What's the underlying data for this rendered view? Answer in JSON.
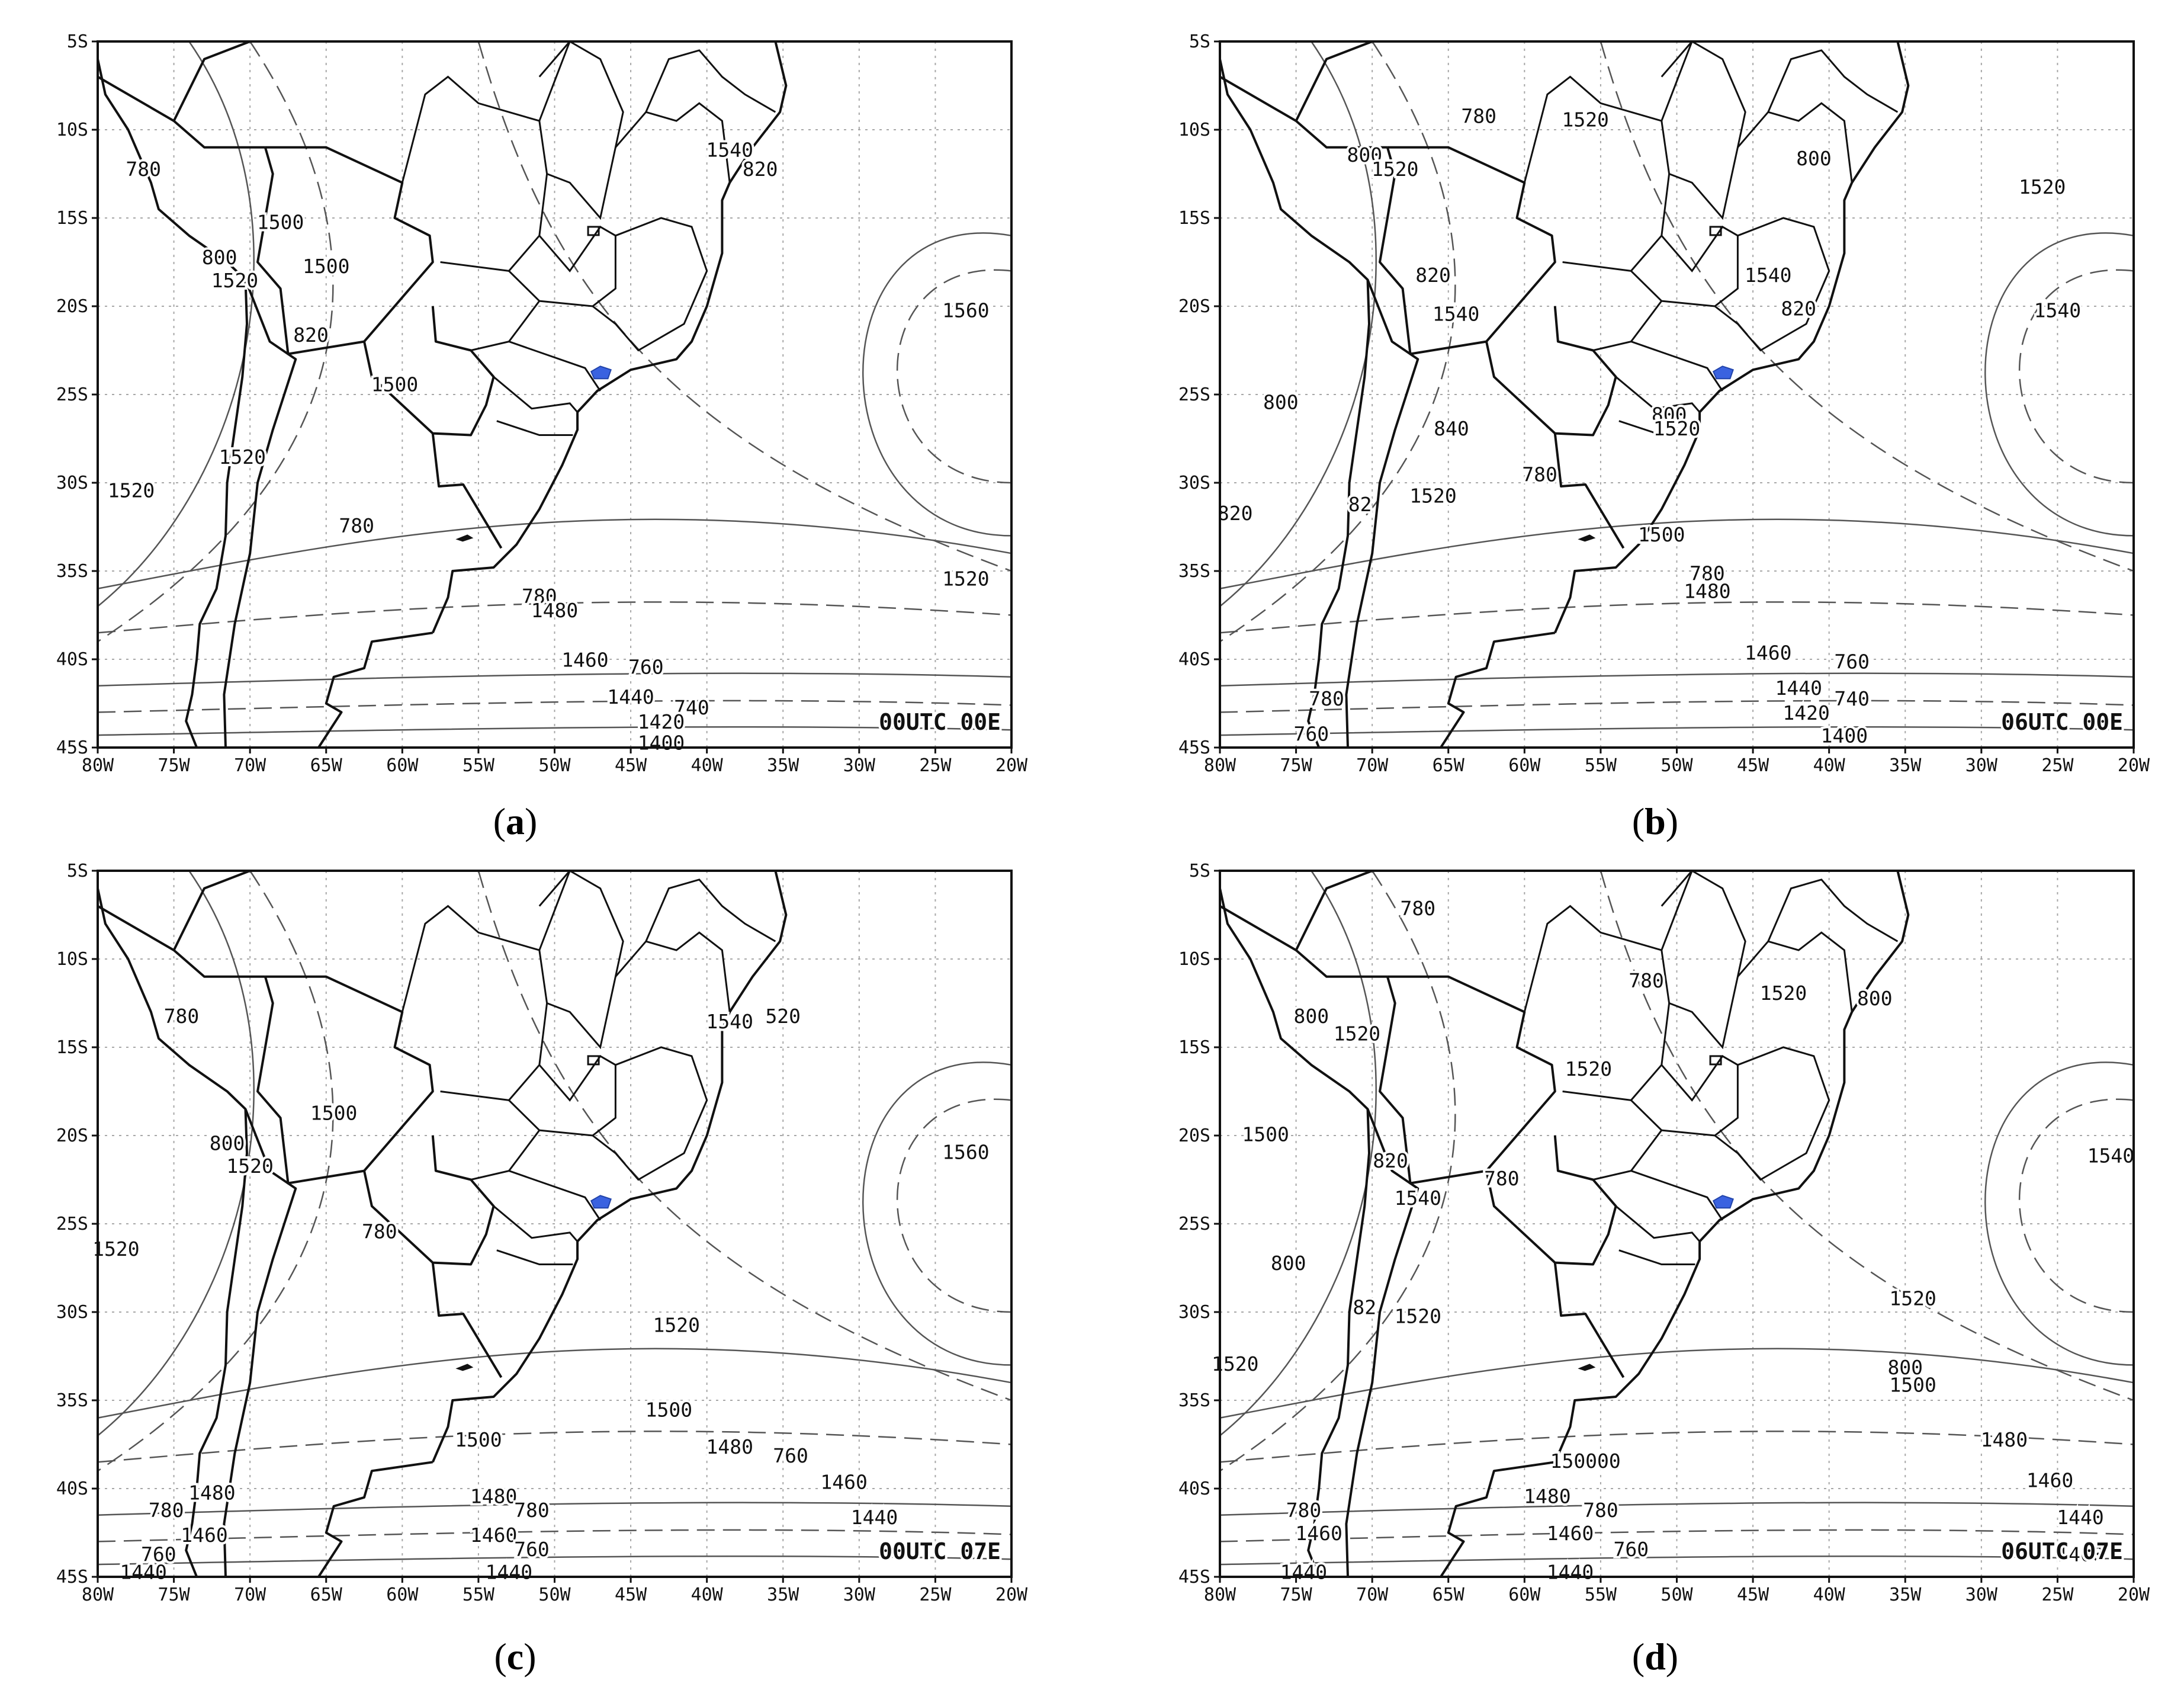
{
  "figure": {
    "panels": [
      {
        "id": "a",
        "caption": "a",
        "stamp": "00UTC 00E",
        "x_ticks": [
          "80W",
          "75W",
          "70W",
          "65W",
          "60W",
          "55W",
          "50W",
          "45W",
          "40W",
          "35W",
          "30W",
          "25W",
          "20W"
        ],
        "y_ticks": [
          "5S",
          "10S",
          "15S",
          "20S",
          "25S",
          "30S",
          "35S",
          "40S",
          "45S"
        ],
        "contour_labels": [
          {
            "text": "780",
            "lon": -77,
            "lat": -12.3
          },
          {
            "text": "1500",
            "lon": -68,
            "lat": -15.3
          },
          {
            "text": "1500",
            "lon": -65,
            "lat": -17.8
          },
          {
            "text": "800",
            "lon": -72,
            "lat": -17.3
          },
          {
            "text": "1520",
            "lon": -71,
            "lat": -18.6
          },
          {
            "text": "820",
            "lon": -66,
            "lat": -21.7
          },
          {
            "text": "1500",
            "lon": -60.5,
            "lat": -24.5
          },
          {
            "text": "1520",
            "lon": -77.8,
            "lat": -30.5
          },
          {
            "text": "1520",
            "lon": -70.5,
            "lat": -28.6
          },
          {
            "text": "780",
            "lon": -63,
            "lat": -32.5
          },
          {
            "text": "1540",
            "lon": -38.5,
            "lat": -11.2
          },
          {
            "text": "820",
            "lon": -36.5,
            "lat": -12.3
          },
          {
            "text": "1560",
            "lon": -23,
            "lat": -20.3
          },
          {
            "text": "1520",
            "lon": -23,
            "lat": -35.5
          },
          {
            "text": "780",
            "lon": -51,
            "lat": -36.5
          },
          {
            "text": "1480",
            "lon": -50,
            "lat": -37.3
          },
          {
            "text": "1460",
            "lon": -48,
            "lat": -40.1
          },
          {
            "text": "760",
            "lon": -44,
            "lat": -40.5
          },
          {
            "text": "1440",
            "lon": -45,
            "lat": -42.2
          },
          {
            "text": "740",
            "lon": -41,
            "lat": -42.8
          },
          {
            "text": "1420",
            "lon": -43,
            "lat": -43.6
          },
          {
            "text": "1400",
            "lon": -43,
            "lat": -44.8
          }
        ]
      },
      {
        "id": "b",
        "caption": "b",
        "stamp": "06UTC 00E",
        "x_ticks": [
          "80W",
          "75W",
          "70W",
          "65W",
          "60W",
          "55W",
          "50W",
          "45W",
          "40W",
          "35W",
          "30W",
          "25W",
          "20W"
        ],
        "y_ticks": [
          "5S",
          "10S",
          "15S",
          "20S",
          "25S",
          "30S",
          "35S",
          "40S",
          "45S"
        ],
        "contour_labels": [
          {
            "text": "780",
            "lon": -63,
            "lat": -9.3
          },
          {
            "text": "1520",
            "lon": -56,
            "lat": -9.5
          },
          {
            "text": "800",
            "lon": -70.5,
            "lat": -11.5
          },
          {
            "text": "1520",
            "lon": -68.5,
            "lat": -12.3
          },
          {
            "text": "800",
            "lon": -41,
            "lat": -11.7
          },
          {
            "text": "1520",
            "lon": -26,
            "lat": -13.3
          },
          {
            "text": "820",
            "lon": -66,
            "lat": -18.3
          },
          {
            "text": "1540",
            "lon": -64.5,
            "lat": -20.5
          },
          {
            "text": "1540",
            "lon": -44,
            "lat": -18.3
          },
          {
            "text": "820",
            "lon": -42,
            "lat": -20.2
          },
          {
            "text": "1540",
            "lon": -25,
            "lat": -20.3
          },
          {
            "text": "800",
            "lon": -76,
            "lat": -25.5
          },
          {
            "text": "840",
            "lon": -64.8,
            "lat": -27
          },
          {
            "text": "800",
            "lon": -50.5,
            "lat": -26.2
          },
          {
            "text": "1520",
            "lon": -50,
            "lat": -27
          },
          {
            "text": "780",
            "lon": -59,
            "lat": -29.6
          },
          {
            "text": "1520",
            "lon": -66,
            "lat": -30.8
          },
          {
            "text": "820",
            "lon": -79,
            "lat": -31.8
          },
          {
            "text": "82",
            "lon": -70.8,
            "lat": -31.3
          },
          {
            "text": "1500",
            "lon": -51,
            "lat": -33
          },
          {
            "text": "780",
            "lon": -48,
            "lat": -35.2
          },
          {
            "text": "1480",
            "lon": -48,
            "lat": -36.2
          },
          {
            "text": "1460",
            "lon": -44,
            "lat": -39.7
          },
          {
            "text": "760",
            "lon": -38.5,
            "lat": -40.2
          },
          {
            "text": "1440",
            "lon": -42,
            "lat": -41.7
          },
          {
            "text": "740",
            "lon": -38.5,
            "lat": -42.3
          },
          {
            "text": "1420",
            "lon": -41.5,
            "lat": -43.1
          },
          {
            "text": "1400",
            "lon": -39,
            "lat": -44.4
          },
          {
            "text": "780",
            "lon": -73,
            "lat": -42.3
          },
          {
            "text": "760",
            "lon": -74,
            "lat": -44.3
          }
        ]
      },
      {
        "id": "c",
        "caption": "c",
        "stamp": "00UTC 07E",
        "x_ticks": [
          "80W",
          "75W",
          "70W",
          "65W",
          "60W",
          "55W",
          "50W",
          "45W",
          "40W",
          "35W",
          "30W",
          "25W",
          "20W"
        ],
        "y_ticks": [
          "5S",
          "10S",
          "15S",
          "20S",
          "25S",
          "30S",
          "35S",
          "40S",
          "45S"
        ],
        "contour_labels": [
          {
            "text": "780",
            "lon": -74.5,
            "lat": -13.3
          },
          {
            "text": "1500",
            "lon": -64.5,
            "lat": -18.8
          },
          {
            "text": "800",
            "lon": -71.5,
            "lat": -20.5
          },
          {
            "text": "1520",
            "lon": -70,
            "lat": -21.8
          },
          {
            "text": "1520",
            "lon": -78.8,
            "lat": -26.5
          },
          {
            "text": "780",
            "lon": -61.5,
            "lat": -25.5
          },
          {
            "text": "1540",
            "lon": -38.5,
            "lat": -13.6
          },
          {
            "text": "520",
            "lon": -35,
            "lat": -13.3
          },
          {
            "text": "1560",
            "lon": -23,
            "lat": -21
          },
          {
            "text": "1520",
            "lon": -42,
            "lat": -30.8
          },
          {
            "text": "1500",
            "lon": -42.5,
            "lat": -35.6
          },
          {
            "text": "1500",
            "lon": -55,
            "lat": -37.3
          },
          {
            "text": "1480",
            "lon": -38.5,
            "lat": -37.7
          },
          {
            "text": "760",
            "lon": -34.5,
            "lat": -38.2
          },
          {
            "text": "1460",
            "lon": -31,
            "lat": -39.7
          },
          {
            "text": "1440",
            "lon": -29,
            "lat": -41.7
          },
          {
            "text": "1480",
            "lon": -54,
            "lat": -40.5
          },
          {
            "text": "780",
            "lon": -51.5,
            "lat": -41.3
          },
          {
            "text": "1460",
            "lon": -54,
            "lat": -42.7
          },
          {
            "text": "760",
            "lon": -51.5,
            "lat": -43.5
          },
          {
            "text": "1440",
            "lon": -53,
            "lat": -44.8
          },
          {
            "text": "1480",
            "lon": -72.5,
            "lat": -40.3
          },
          {
            "text": "780",
            "lon": -75.5,
            "lat": -41.3
          },
          {
            "text": "1460",
            "lon": -73,
            "lat": -42.7
          },
          {
            "text": "760",
            "lon": -76,
            "lat": -43.8
          },
          {
            "text": "1440",
            "lon": -77,
            "lat": -44.8
          }
        ]
      },
      {
        "id": "d",
        "caption": "d",
        "stamp": "06UTC 07E",
        "x_ticks": [
          "80W",
          "75W",
          "70W",
          "65W",
          "60W",
          "55W",
          "50W",
          "45W",
          "40W",
          "35W",
          "30W",
          "25W",
          "20W"
        ],
        "y_ticks": [
          "5S",
          "10S",
          "15S",
          "20S",
          "25S",
          "30S",
          "35S",
          "40S",
          "45S"
        ],
        "contour_labels": [
          {
            "text": "780",
            "lon": -67,
            "lat": -7.2
          },
          {
            "text": "780",
            "lon": -52,
            "lat": -11.3
          },
          {
            "text": "800",
            "lon": -74,
            "lat": -13.3
          },
          {
            "text": "1520",
            "lon": -71,
            "lat": -14.3
          },
          {
            "text": "1520",
            "lon": -43,
            "lat": -12
          },
          {
            "text": "800",
            "lon": -37,
            "lat": -12.3
          },
          {
            "text": "1520",
            "lon": -55.8,
            "lat": -16.3
          },
          {
            "text": "1500",
            "lon": -77,
            "lat": -20
          },
          {
            "text": "820",
            "lon": -68.8,
            "lat": -21.5
          },
          {
            "text": "780",
            "lon": -61.5,
            "lat": -22.5
          },
          {
            "text": "1540",
            "lon": -67,
            "lat": -23.6
          },
          {
            "text": "1540",
            "lon": -21.5,
            "lat": -21.2
          },
          {
            "text": "800",
            "lon": -75.5,
            "lat": -27.3
          },
          {
            "text": "82",
            "lon": -70.5,
            "lat": -29.8
          },
          {
            "text": "1520",
            "lon": -67,
            "lat": -30.3
          },
          {
            "text": "1520",
            "lon": -79,
            "lat": -33
          },
          {
            "text": "1520",
            "lon": -34.5,
            "lat": -29.3
          },
          {
            "text": "800",
            "lon": -35,
            "lat": -33.2
          },
          {
            "text": "1500",
            "lon": -34.5,
            "lat": -34.2
          },
          {
            "text": "150000",
            "lon": -56,
            "lat": -38.5
          },
          {
            "text": "1480",
            "lon": -28.5,
            "lat": -37.3
          },
          {
            "text": "1460",
            "lon": -25.5,
            "lat": -39.6
          },
          {
            "text": "1440",
            "lon": -23.5,
            "lat": -41.7
          },
          {
            "text": "1480",
            "lon": -58.5,
            "lat": -40.5
          },
          {
            "text": "780",
            "lon": -55,
            "lat": -41.3
          },
          {
            "text": "1460",
            "lon": -57,
            "lat": -42.6
          },
          {
            "text": "760",
            "lon": -53,
            "lat": -43.5
          },
          {
            "text": "1440",
            "lon": -57,
            "lat": -44.8
          },
          {
            "text": "780",
            "lon": -74.5,
            "lat": -41.3
          },
          {
            "text": "1460",
            "lon": -73.5,
            "lat": -42.6
          },
          {
            "text": "1440",
            "lon": -74.5,
            "lat": -44.8
          },
          {
            "text": "1400",
            "lon": -23.5,
            "lat": -43.8
          }
        ]
      }
    ]
  }
}
